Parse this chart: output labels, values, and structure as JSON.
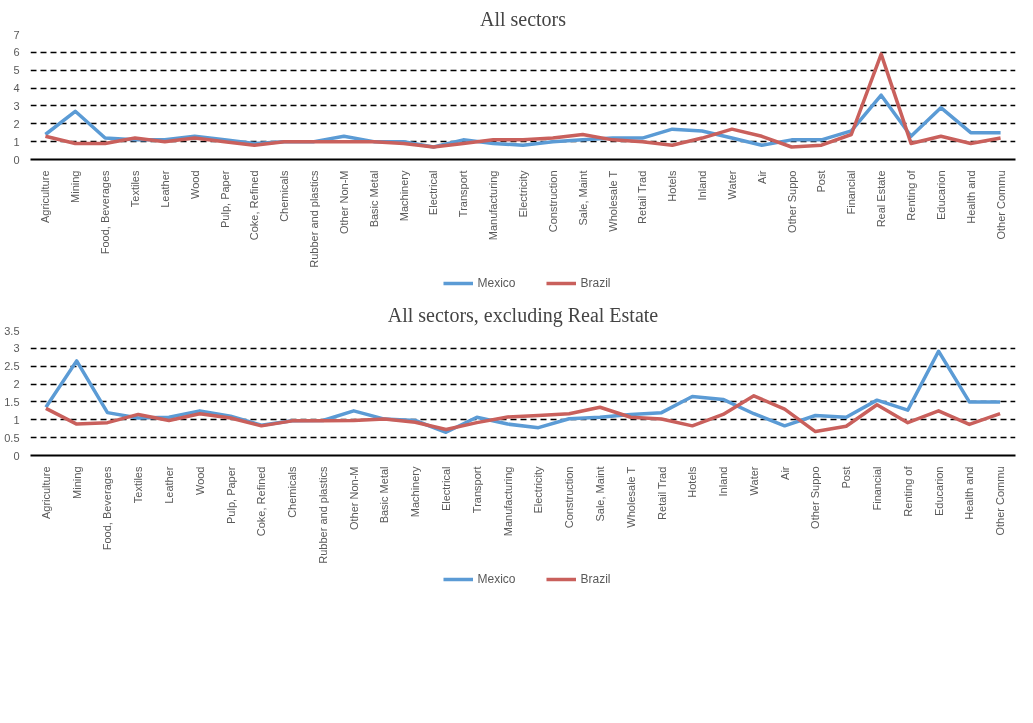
{
  "chart_data": [
    {
      "type": "line",
      "title": "All sectors",
      "categories": [
        "Agriculture",
        "Mining",
        "Food, Beverages",
        "Textiles",
        "Leather",
        "Wood",
        "Pulp, Paper",
        "Coke, Refined",
        "Chemicals",
        "Rubber and plastics",
        "Other Non-M",
        "Basic Metal",
        "Machinery",
        "Electrical",
        "Transport",
        "Manufacturing",
        "Electricity",
        "Construction",
        "Sale, Maint",
        "Wholesale T",
        "Retail Trad",
        "Hotels",
        "Inland",
        "Water",
        "Air",
        "Other Suppo",
        "Post",
        "Financial",
        "Real Estate",
        "Renting of",
        "Educarion",
        "Health and",
        "Other Commu"
      ],
      "series": [
        {
          "name": "Mexico",
          "color": "#5b9bd5",
          "values": [
            1.4,
            2.7,
            1.2,
            1.1,
            1.1,
            1.3,
            1.1,
            0.9,
            1.0,
            1.0,
            1.3,
            1.0,
            1.0,
            0.7,
            1.1,
            0.9,
            0.8,
            1.0,
            1.1,
            1.2,
            1.2,
            1.7,
            1.6,
            1.2,
            0.8,
            1.1,
            1.1,
            1.6,
            3.6,
            1.3,
            2.9,
            1.5,
            1.5
          ]
        },
        {
          "name": "Brazil",
          "color": "#c9605c",
          "values": [
            1.3,
            0.9,
            0.9,
            1.2,
            1.0,
            1.2,
            1.0,
            0.8,
            1.0,
            1.0,
            1.0,
            1.0,
            0.9,
            0.7,
            0.9,
            1.1,
            1.1,
            1.2,
            1.4,
            1.1,
            1.0,
            0.8,
            1.2,
            1.7,
            1.3,
            0.7,
            0.8,
            1.4,
            5.9,
            0.9,
            1.3,
            0.9,
            1.2
          ]
        }
      ],
      "ylim": [
        0,
        7
      ],
      "yticks": [
        0,
        1,
        2,
        3,
        4,
        5,
        6,
        7
      ],
      "grid": "y",
      "legend": "bottom",
      "line_style": "solid",
      "marker": "none"
    },
    {
      "type": "line",
      "title": "All sectors, excluding Real Estate",
      "categories": [
        "Agriculture",
        "Mining",
        "Food, Beverages",
        "Textiles",
        "Leather",
        "Wood",
        "Pulp, Paper",
        "Coke, Refined",
        "Chemicals",
        "Rubber and plastics",
        "Other Non-M",
        "Basic Metal",
        "Machinery",
        "Electrical",
        "Transport",
        "Manufacturing",
        "Electricity",
        "Construction",
        "Sale, Maint",
        "Wholesale T",
        "Retail Trad",
        "Hotels",
        "Inland",
        "Water",
        "Air",
        "Other Suppo",
        "Post",
        "Financial",
        "Renting of",
        "Educarion",
        "Health and",
        "Other Commu"
      ],
      "series": [
        {
          "name": "Mexico",
          "color": "#5b9bd5",
          "values": [
            1.35,
            2.65,
            1.2,
            1.05,
            1.07,
            1.25,
            1.1,
            0.85,
            0.97,
            0.98,
            1.25,
            1.02,
            0.98,
            0.65,
            1.07,
            0.88,
            0.78,
            1.03,
            1.07,
            1.15,
            1.2,
            1.65,
            1.57,
            1.17,
            0.83,
            1.12,
            1.07,
            1.55,
            1.27,
            2.92,
            1.5,
            1.5
          ]
        },
        {
          "name": "Brazil",
          "color": "#c9605c",
          "values": [
            1.32,
            0.88,
            0.92,
            1.15,
            0.98,
            1.17,
            1.05,
            0.83,
            0.97,
            0.97,
            0.98,
            1.02,
            0.93,
            0.73,
            0.92,
            1.08,
            1.12,
            1.17,
            1.35,
            1.07,
            1.02,
            0.83,
            1.15,
            1.67,
            1.3,
            0.67,
            0.82,
            1.42,
            0.92,
            1.25,
            0.87,
            1.17
          ]
        }
      ],
      "ylim": [
        0,
        3.5
      ],
      "yticks": [
        0,
        0.5,
        1,
        1.5,
        2,
        2.5,
        3,
        3.5
      ],
      "grid": "y",
      "legend": "bottom",
      "line_style": "solid",
      "marker": "none"
    }
  ]
}
